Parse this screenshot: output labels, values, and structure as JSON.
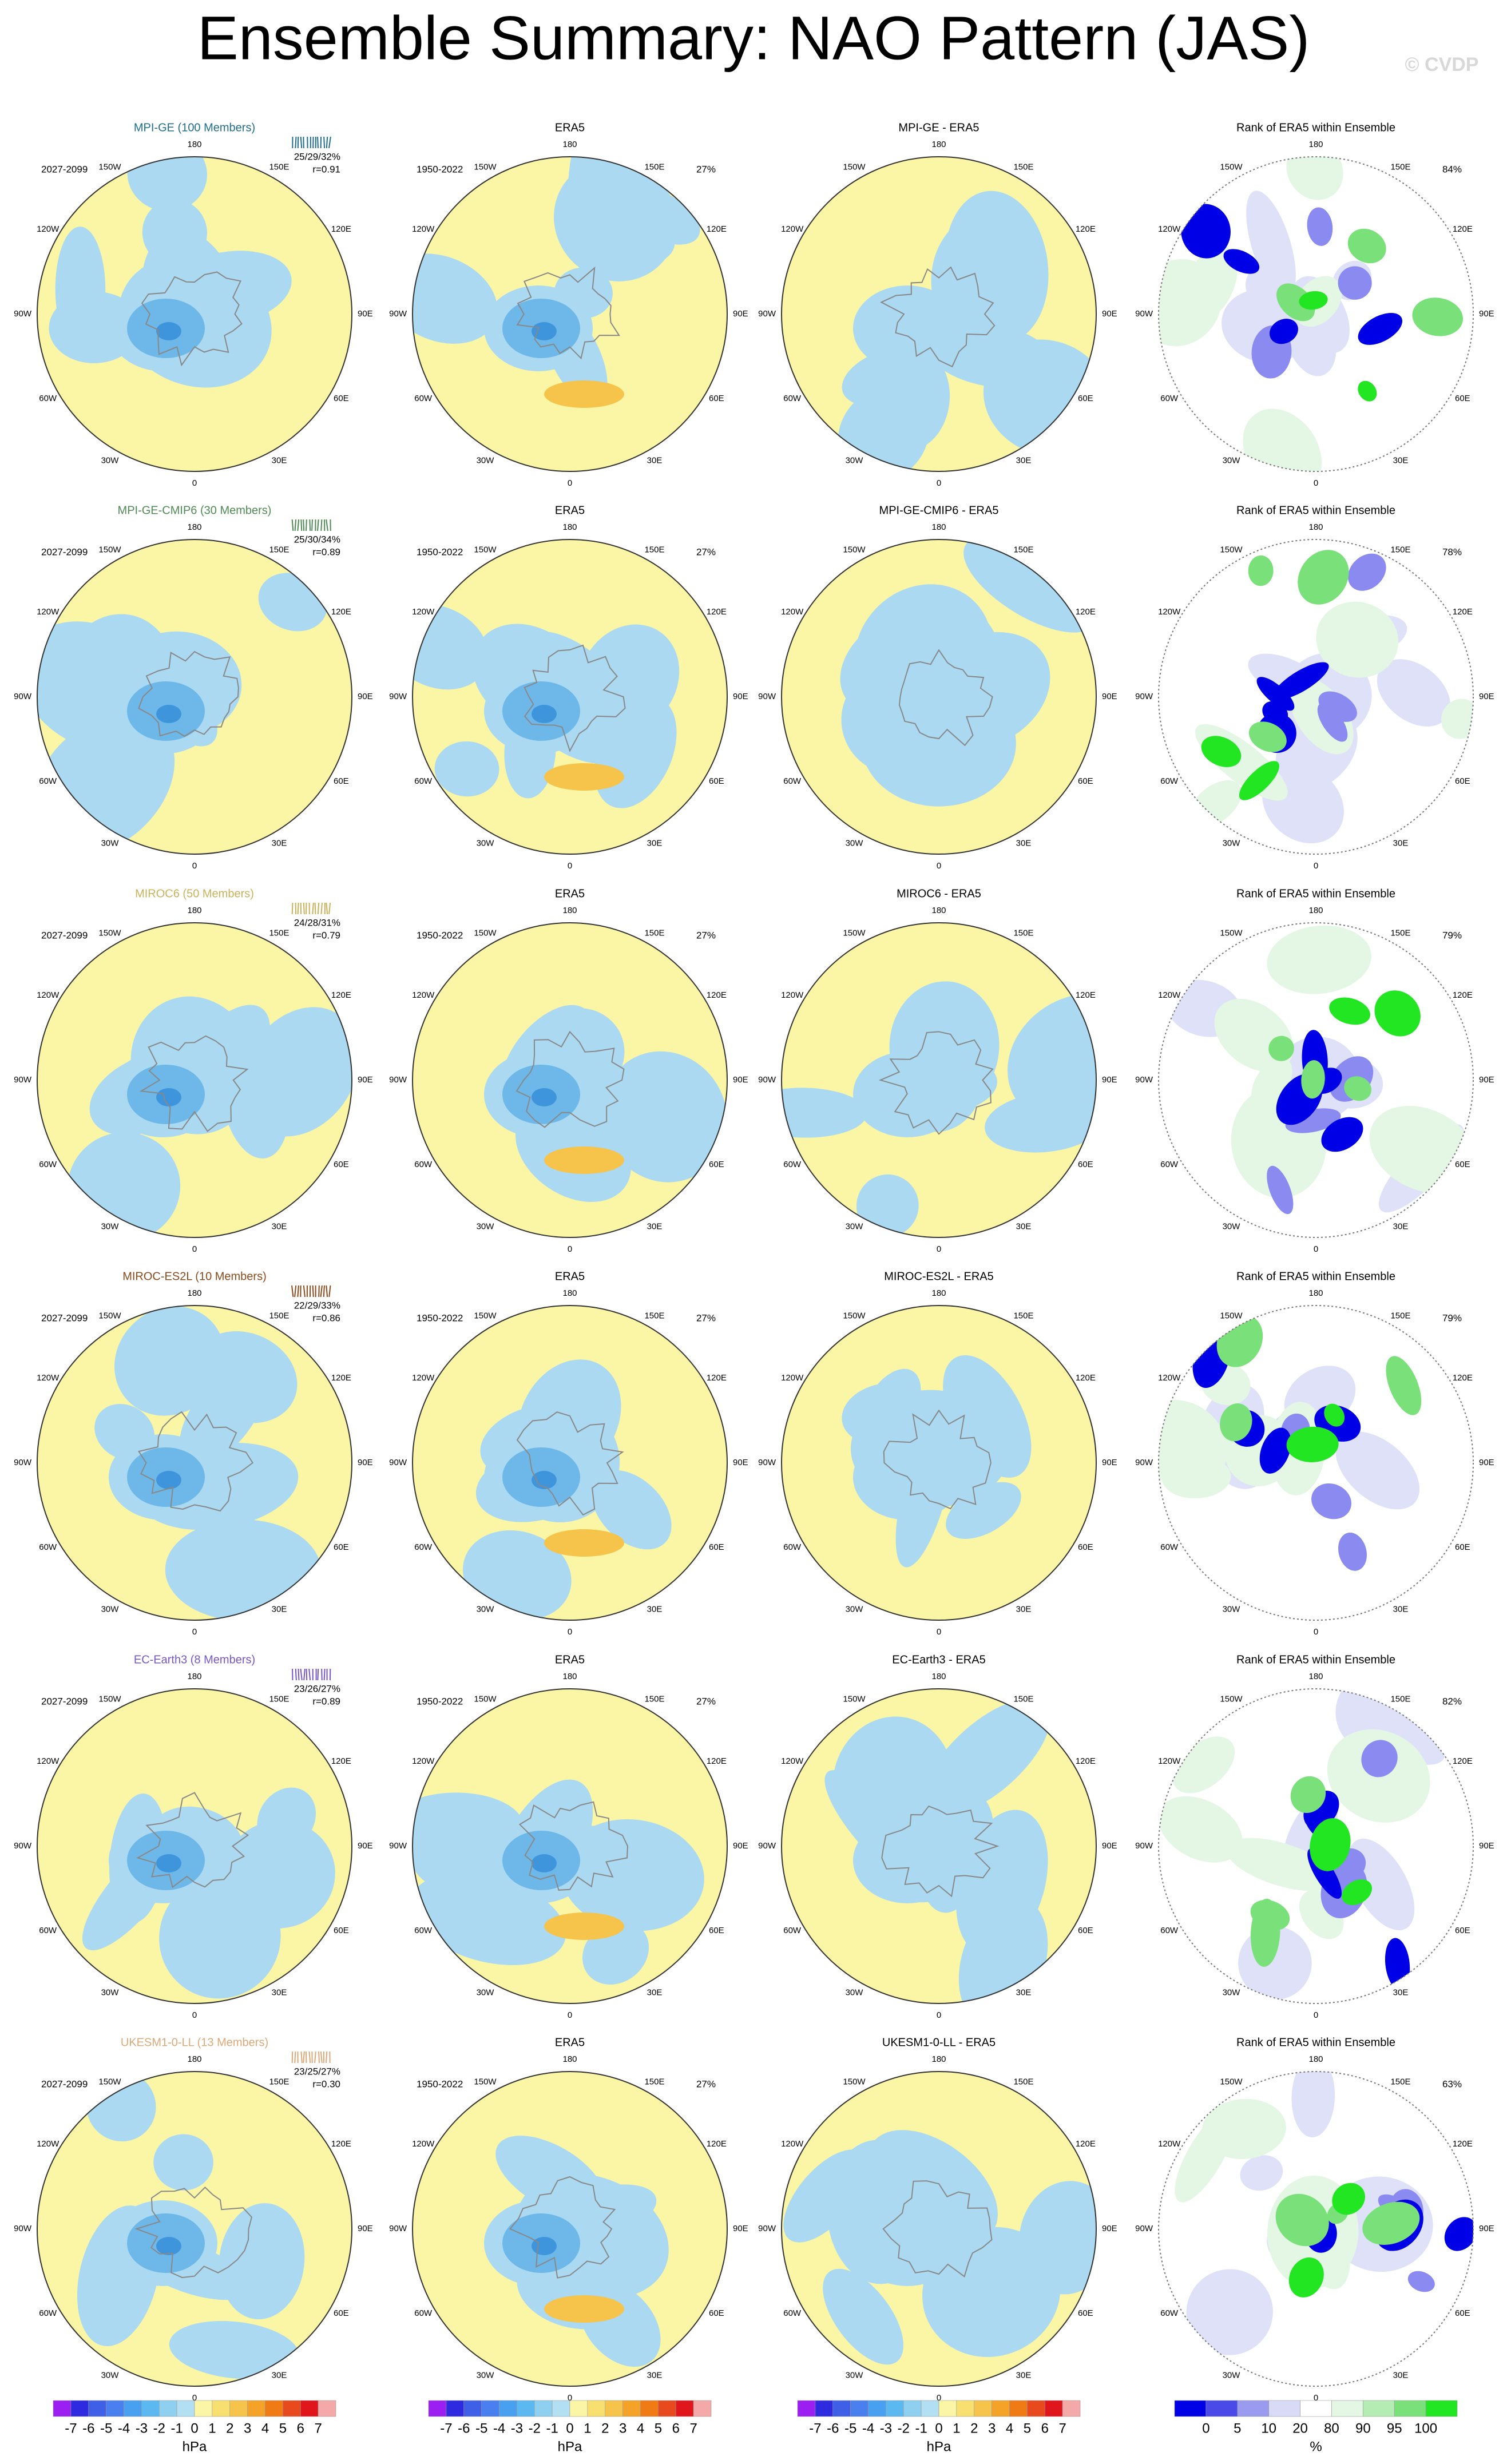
{
  "title": "Ensemble Summary: NAO Pattern (JAS)",
  "credit": "© CVDP",
  "lon_labels": [
    "180",
    "150E",
    "120E",
    "90E",
    "60E",
    "30E",
    "0",
    "30W",
    "60W",
    "90W",
    "120W",
    "150W"
  ],
  "rank_title": "Rank of ERA5 within Ensemble",
  "era5": {
    "title": "ERA5",
    "period": "1950-2022",
    "pct": "27%"
  },
  "rows": [
    {
      "model": "MPI-GE (100 Members)",
      "color": "#1f6e8c",
      "period": "2027-2099",
      "pct": "25/29/32%",
      "r": "r=0.91",
      "diff_title": "MPI-GE - ERA5",
      "rank_pct": "84%"
    },
    {
      "model": "MPI-GE-CMIP6 (30 Members)",
      "color": "#4f8a55",
      "period": "2027-2099",
      "pct": "25/30/34%",
      "r": "r=0.89",
      "diff_title": "MPI-GE-CMIP6 - ERA5",
      "rank_pct": "78%"
    },
    {
      "model": "MIROC6 (50 Members)",
      "color": "#c9b25a",
      "period": "2027-2099",
      "pct": "24/28/31%",
      "r": "r=0.79",
      "diff_title": "MIROC6 - ERA5",
      "rank_pct": "79%"
    },
    {
      "model": "MIROC-ES2L (10 Members)",
      "color": "#8b4a1c",
      "period": "2027-2099",
      "pct": "22/29/33%",
      "r": "r=0.86",
      "diff_title": "MIROC-ES2L - ERA5",
      "rank_pct": "79%"
    },
    {
      "model": "EC-Earth3 (8 Members)",
      "color": "#7656c8",
      "period": "2027-2099",
      "pct": "23/26/27%",
      "r": "r=0.89",
      "diff_title": "EC-Earth3 - ERA5",
      "rank_pct": "82%"
    },
    {
      "model": "UKESM1-0-LL (13 Members)",
      "color": "#dba878",
      "period": "2027-2099",
      "pct": "23/25/27%",
      "r": "r=0.30",
      "diff_title": "UKESM1-0-LL - ERA5",
      "rank_pct": "63%"
    }
  ],
  "colorbars": {
    "hpa": {
      "labels": [
        "-7",
        "-6",
        "-5",
        "-4",
        "-3",
        "-2",
        "-1",
        "0",
        "1",
        "2",
        "3",
        "4",
        "5",
        "6",
        "7"
      ],
      "colors": [
        "#9a1ff0",
        "#2d2ae0",
        "#3f5fe6",
        "#4a7ff0",
        "#4aa0f0",
        "#5cb8f0",
        "#8fd0f0",
        "#b2e0f2",
        "#fbf6a6",
        "#f8e070",
        "#f6c44a",
        "#f5a228",
        "#f07a14",
        "#e84a1e",
        "#e0161c",
        "#f4a8a8"
      ],
      "unit": "hPa"
    },
    "rank": {
      "labels": [
        "0",
        "5",
        "10",
        "20",
        "80",
        "90",
        "95",
        "100"
      ],
      "colors": [
        "#0000e6",
        "#4a4ae8",
        "#9a9aee",
        "#d8daf6",
        "#ffffff",
        "#e4f6e4",
        "#b4ecb4",
        "#7ae07a",
        "#22e622"
      ],
      "unit": "%"
    }
  }
}
